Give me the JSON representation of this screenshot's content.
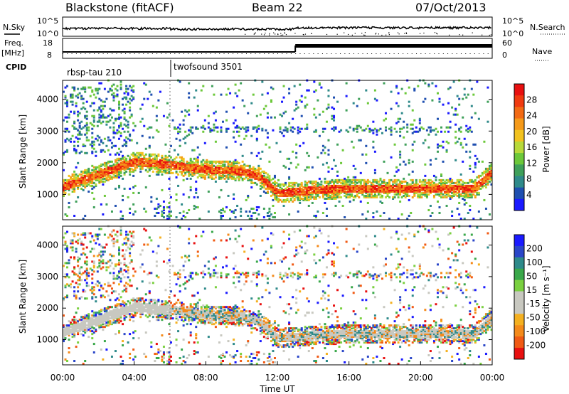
{
  "header": {
    "station": "Blackstone (fitACF)",
    "beam": "Beam 22",
    "date": "07/Oct/2013"
  },
  "top_panel": {
    "left_label": "N.Sky",
    "right_label": "N.Search",
    "left_ticks": [
      "10^5",
      "10^0"
    ],
    "right_ticks": [
      "10^5",
      "10^0"
    ]
  },
  "freq_panel": {
    "left_label_line1": "Freq.",
    "left_label_line2": "[MHz]",
    "left_ticks": [
      "18",
      "8"
    ],
    "right_label": "Nave",
    "right_ticks": [
      "60",
      "0"
    ]
  },
  "cpid": {
    "label": "CPID",
    "programs": [
      {
        "name": "rbsp-tau 210",
        "start_hour": 0
      },
      {
        "name": "twofsound 3501",
        "start_hour": 6
      }
    ]
  },
  "x_axis": {
    "title": "Time UT",
    "ticks": [
      "00:00",
      "04:00",
      "08:00",
      "12:00",
      "16:00",
      "20:00",
      "00:00"
    ]
  },
  "colorbars": [
    {
      "label": "Power [dB]",
      "colors": [
        "#1a1aff",
        "#1f4fb0",
        "#2f8a8a",
        "#3fa05a",
        "#6cc83a",
        "#b8d93a",
        "#f2c21f",
        "#f59a1a",
        "#f26a14",
        "#f03a10",
        "#e81010"
      ],
      "ticks": [
        "4",
        "8",
        "12",
        "16",
        "20",
        "24",
        "28"
      ]
    },
    {
      "label": "Velocity [m s⁻¹]",
      "colors": [
        "#1a1aff",
        "#2a46c8",
        "#2e8a8a",
        "#3aa84a",
        "#7ad040",
        "#c8c8c0",
        "#c8c8c0",
        "#f4b020",
        "#f48a1a",
        "#f05a14",
        "#e81010"
      ],
      "ticks": [
        "200",
        "100",
        "50",
        "15",
        "-15",
        "-50",
        "-100",
        "-200"
      ]
    }
  ],
  "chart_data": [
    {
      "type": "heatmap",
      "title": "Power",
      "xlabel": "Time UT",
      "ylabel": "Slant Range [km]",
      "xlim_hours": [
        0,
        24
      ],
      "ylim_km": [
        200,
        4600
      ],
      "yticks": [
        1000,
        2000,
        3000,
        4000
      ],
      "value_label": "Power [dB]",
      "value_range": [
        0,
        30
      ],
      "description_traces": [
        {
          "name": "main_band",
          "points_hour_km": [
            [
              0,
              1200
            ],
            [
              2,
              1600
            ],
            [
              4,
              2000
            ],
            [
              6,
              1900
            ],
            [
              8,
              1750
            ],
            [
              10,
              1700
            ],
            [
              11,
              1500
            ],
            [
              12,
              1000
            ],
            [
              14,
              1100
            ],
            [
              16,
              1150
            ],
            [
              20,
              1150
            ],
            [
              23,
              1150
            ],
            [
              24,
              1700
            ]
          ]
        }
      ]
    },
    {
      "type": "heatmap",
      "title": "Velocity",
      "xlabel": "Time UT",
      "ylabel": "Slant Range [km]",
      "xlim_hours": [
        0,
        24
      ],
      "ylim_km": [
        200,
        4600
      ],
      "yticks": [
        1000,
        2000,
        3000,
        4000
      ],
      "value_label": "Velocity [m s⁻¹]",
      "value_range": [
        -200,
        200
      ]
    }
  ]
}
